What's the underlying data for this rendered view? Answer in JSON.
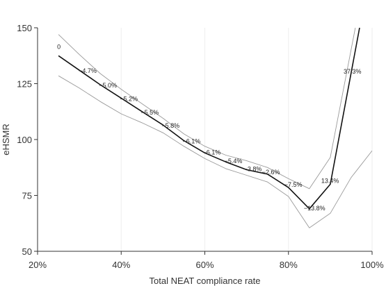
{
  "chart_data": {
    "type": "line",
    "title": "",
    "xlabel": "Total NEAT compliance rate",
    "ylabel": "eHSMR",
    "xlim": [
      20,
      100
    ],
    "ylim": [
      50,
      150
    ],
    "x_ticks": [
      20,
      40,
      60,
      80,
      100
    ],
    "x_tick_labels": [
      "20%",
      "40%",
      "60%",
      "80%",
      "100%"
    ],
    "y_ticks": [
      50,
      75,
      100,
      125,
      150
    ],
    "y_tick_labels": [
      "50",
      "75",
      "100",
      "125",
      "150"
    ],
    "grid": "vertical",
    "legend": "none",
    "colors": {
      "main": "#111111",
      "ci": "#999999",
      "grid": "#eeeeee",
      "axis": "#333333"
    },
    "series": [
      {
        "role": "main",
        "x": [
          25,
          30,
          35,
          40,
          45,
          50,
          55,
          60,
          65,
          70,
          75,
          80,
          85,
          90,
          97
        ],
        "y": [
          137.5,
          131,
          124.5,
          118.5,
          112.5,
          106.5,
          99.5,
          94,
          90,
          86.5,
          84.5,
          78.5,
          69,
          80,
          150
        ]
      },
      {
        "role": "ci-upper",
        "x": [
          25,
          30,
          35,
          40,
          45,
          50,
          55,
          60,
          65,
          70,
          75,
          80,
          85,
          90,
          96
        ],
        "y": [
          147,
          138,
          129.5,
          122.5,
          116,
          109.5,
          102.5,
          97,
          93,
          90.5,
          87.5,
          82.5,
          78,
          92,
          150
        ]
      },
      {
        "role": "ci-lower",
        "x": [
          25,
          30,
          35,
          40,
          45,
          50,
          55,
          60,
          65,
          70,
          75,
          80,
          85,
          90,
          95,
          100
        ],
        "y": [
          128.5,
          123,
          117,
          111.5,
          107.5,
          103,
          97,
          91.5,
          87,
          84,
          81,
          74.5,
          60.5,
          67,
          83,
          95
        ]
      }
    ],
    "annotations": [
      {
        "x": 25,
        "y": 137.5,
        "text": "0",
        "dx": -2,
        "dy": -10
      },
      {
        "x": 30,
        "y": 131,
        "text": "−4.7%",
        "dx": -1,
        "dy": 4
      },
      {
        "x": 35,
        "y": 124.5,
        "text": "−5.0%",
        "dx": -2,
        "dy": 4
      },
      {
        "x": 40,
        "y": 118.5,
        "text": "−5.2%",
        "dx": -2,
        "dy": 4
      },
      {
        "x": 45,
        "y": 112.5,
        "text": "−5.5%",
        "dx": -2,
        "dy": 4
      },
      {
        "x": 50,
        "y": 106.5,
        "text": "−5.8%",
        "dx": -2,
        "dy": 4
      },
      {
        "x": 55,
        "y": 99.5,
        "text": "−6.1%",
        "dx": -2,
        "dy": 4
      },
      {
        "x": 60,
        "y": 94,
        "text": "−6.1%",
        "dx": -3,
        "dy": 2
      },
      {
        "x": 65,
        "y": 90,
        "text": "−5.4%",
        "dx": -2,
        "dy": 2
      },
      {
        "x": 70,
        "y": 86.5,
        "text": "−3.8%",
        "dx": -4,
        "dy": 2
      },
      {
        "x": 75,
        "y": 84.5,
        "text": "−2.6%",
        "dx": -8,
        "dy": 0
      },
      {
        "x": 80,
        "y": 78.5,
        "text": "−7.5%",
        "dx": -6,
        "dy": -1
      },
      {
        "x": 85,
        "y": 69,
        "text": "−13.8%",
        "dx": -8,
        "dy": 2
      },
      {
        "x": 90,
        "y": 80,
        "text": "13.4%",
        "dx": -13,
        "dy": -2
      },
      {
        "x": 97,
        "y": 150,
        "text": "37.3%",
        "dx": -23,
        "dy": 66
      }
    ]
  }
}
